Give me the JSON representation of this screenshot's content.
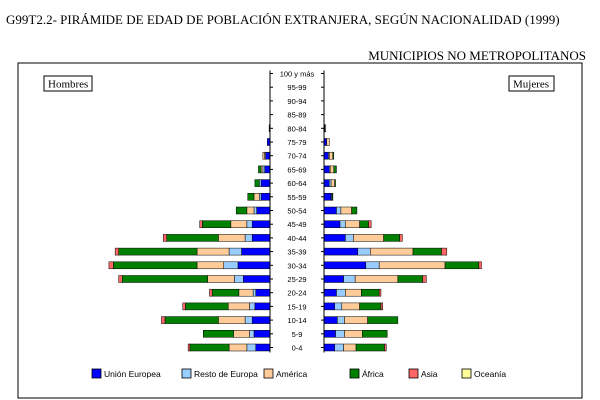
{
  "chart_data": {
    "type": "bar",
    "title": "G99T2.2- PIRÁMIDE DE EDAD DE POBLACIÓN EXTRANJERA, SEGÚN NACIONALIDAD (1999)",
    "subtitle": "MUNICIPIOS NO METROPOLITANOS",
    "left_label": "Hombres",
    "right_label": "Mujeres",
    "categories": [
      "100 y más",
      "95-99",
      "90-94",
      "85-89",
      "80-84",
      "75-79",
      "70-74",
      "65-69",
      "60-64",
      "55-59",
      "50-54",
      "45-49",
      "40-44",
      "35-39",
      "30-34",
      "25-29",
      "20-24",
      "15-19",
      "10-14",
      "5-9",
      "0-4"
    ],
    "series": [
      {
        "name": "Unión Europea",
        "color": "#0000ff",
        "hombres": [
          0,
          0,
          0,
          0,
          0.5,
          1.5,
          2.5,
          3,
          5,
          5,
          7.5,
          10,
          10,
          16,
          18,
          15,
          8,
          8.5,
          10,
          9,
          8
        ],
        "mujeres": [
          0,
          0,
          0,
          0,
          0.5,
          1.5,
          2.5,
          3,
          3,
          4,
          7,
          9,
          12,
          19,
          23.5,
          11,
          7,
          6,
          7.5,
          6.5,
          6
        ]
      },
      {
        "name": "Resto de Europa",
        "color": "#99ccff",
        "hombres": [
          0,
          0,
          0,
          0,
          0,
          0,
          0.5,
          1,
          1,
          1,
          1.5,
          3,
          4,
          7,
          8,
          5,
          1.5,
          3,
          4,
          2.5,
          5
        ],
        "mujeres": [
          0,
          0,
          0,
          0,
          0,
          0,
          0.5,
          0.5,
          1,
          0.5,
          2.5,
          3,
          4.5,
          7,
          7.5,
          6.5,
          5,
          4,
          4,
          5,
          5
        ]
      },
      {
        "name": "América",
        "color": "#ffcc99",
        "hombres": [
          0,
          0,
          0,
          0,
          0,
          0,
          1,
          1,
          0,
          3,
          4,
          9,
          15,
          18,
          15,
          15,
          8,
          12,
          15,
          9,
          10
        ],
        "mujeres": [
          0,
          0,
          0,
          0,
          0.5,
          1.5,
          2,
          2,
          2,
          0,
          6,
          8,
          17,
          24,
          37,
          24,
          9,
          10,
          13,
          10,
          7
        ]
      },
      {
        "name": "África",
        "color": "#008000",
        "hombres": [
          0,
          0,
          0,
          0,
          0,
          0,
          0,
          1.5,
          2.5,
          3.5,
          6,
          16,
          29,
          44,
          47,
          48,
          15,
          24,
          30,
          17,
          22
        ],
        "mujeres": [
          0,
          0,
          0,
          0,
          0,
          0,
          0.5,
          1.5,
          0.5,
          0.5,
          3,
          5,
          9,
          16,
          19,
          14,
          10,
          12,
          17,
          14,
          16
        ]
      },
      {
        "name": "Asia",
        "color": "#ff6666",
        "hombres": [
          0,
          0,
          0,
          0,
          0,
          0,
          0,
          0,
          0,
          0,
          0,
          1.5,
          2,
          2,
          2.5,
          2,
          1.5,
          1.5,
          2,
          0,
          1
        ],
        "mujeres": [
          0,
          0,
          0,
          0,
          0,
          0,
          0,
          0,
          0,
          0,
          0,
          1.5,
          1.5,
          3,
          1.5,
          2,
          1,
          1,
          0,
          0,
          1
        ]
      },
      {
        "name": "Oceanía",
        "color": "#ffff99",
        "hombres": [
          0,
          0,
          0,
          0,
          0,
          0,
          0,
          0,
          0,
          0,
          0,
          0,
          0,
          0,
          0,
          0,
          0,
          0,
          0,
          0,
          0
        ],
        "mujeres": [
          0,
          0,
          0,
          0,
          0,
          0,
          0,
          0,
          0,
          0,
          0,
          0,
          0,
          0,
          0,
          0,
          0,
          0,
          0,
          0,
          0
        ]
      }
    ]
  }
}
